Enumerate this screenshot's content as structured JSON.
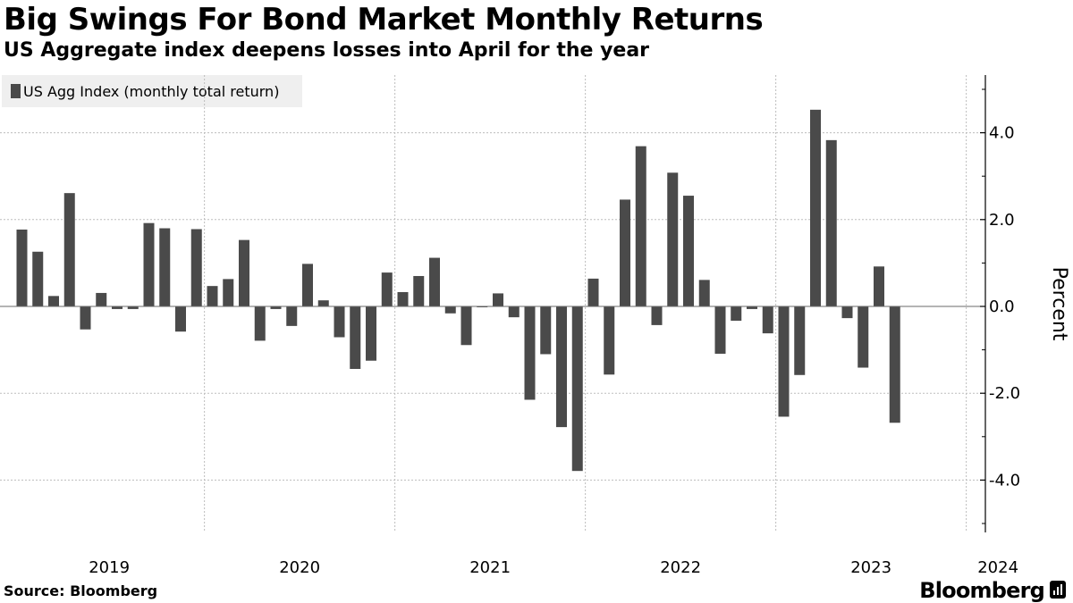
{
  "header": {
    "title": "Big Swings For Bond Market Monthly Returns",
    "subtitle": "US Aggregate index deepens losses into April for the year"
  },
  "footer": {
    "source": "Source: Bloomberg",
    "brand": "Bloomberg"
  },
  "colors": {
    "bar": "#4a4a4a",
    "grid": "#bdbdbd",
    "legend_bg": "#efefef"
  },
  "chart_data": {
    "type": "bar",
    "title": "Big Swings For Bond Market Monthly Returns",
    "subtitle": "US Aggregate index deepens losses into April for the year",
    "ylabel": "Percent",
    "xlabel": "",
    "ylim": [
      -5.1,
      5.3
    ],
    "yticks": [
      4.0,
      2.0,
      0.0,
      -2.0,
      -4.0
    ],
    "ytick_labels": [
      "4.0",
      "2.0",
      "0.0",
      "-2.0",
      "-4.0"
    ],
    "x_year_labels": [
      "2019",
      "2020",
      "2021",
      "2022",
      "2023",
      "2024"
    ],
    "legend_position": "top-left",
    "series": [
      {
        "name": "US Agg Index (monthly total return)",
        "start": "2019-01",
        "values": [
          1.77,
          1.26,
          0.24,
          2.61,
          -0.53,
          0.31,
          -0.06,
          -0.06,
          1.92,
          1.8,
          -0.58,
          1.78,
          0.47,
          0.63,
          1.53,
          -0.79,
          -0.06,
          -0.45,
          0.98,
          0.14,
          -0.71,
          -1.44,
          -1.25,
          0.78,
          0.33,
          0.7,
          1.12,
          -0.16,
          -0.89,
          -0.02,
          0.3,
          -0.25,
          -2.15,
          -1.1,
          -2.78,
          -3.79,
          0.64,
          -1.57,
          2.46,
          3.69,
          -0.43,
          3.08,
          2.55,
          0.61,
          -1.09,
          -0.33,
          -0.06,
          -0.62,
          -2.54,
          -1.58,
          4.53,
          3.83,
          -0.27,
          -1.41,
          0.92,
          -2.68,
          0.0,
          0.0,
          0.0,
          0.0
        ]
      }
    ]
  }
}
